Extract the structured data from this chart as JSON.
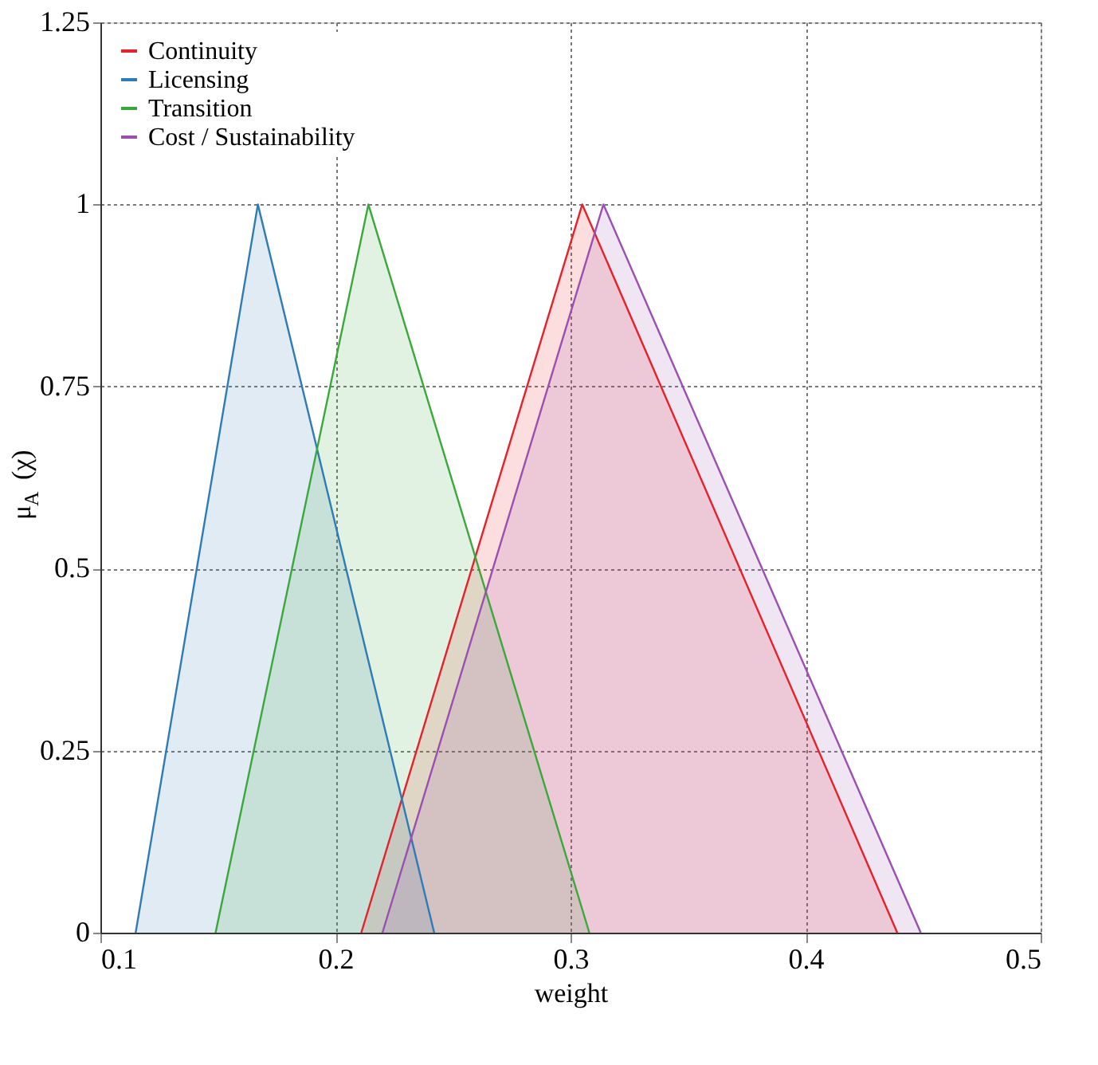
{
  "chart_data": {
    "type": "area",
    "xlabel": "weight",
    "ylabel": "μ$_{A}$ (χ)",
    "xlim": [
      0.1,
      0.5
    ],
    "xticks": [
      0.1,
      0.2,
      0.3,
      0.4,
      0.5
    ],
    "ylim": [
      0,
      1.25
    ],
    "yticks": [
      0,
      0.25,
      0.5,
      0.75,
      1,
      1.25
    ],
    "grid": true,
    "legend": "top left",
    "series": [
      {
        "name": "Continuity",
        "color": "#e8202a",
        "x": [
          0.211,
          0.305,
          0.439
        ],
        "values": [
          0,
          1,
          0
        ]
      },
      {
        "name": "Licensing",
        "color": "#2f7bb5",
        "x": [
          0.115,
          0.167,
          0.242
        ],
        "values": [
          0,
          1,
          0
        ]
      },
      {
        "name": "Transition",
        "color": "#3aa83a",
        "x": [
          0.149,
          0.214,
          0.308
        ],
        "values": [
          0,
          1,
          0
        ]
      },
      {
        "name": "Cost / Sustainability",
        "color": "#9b4fb0",
        "x": [
          0.22,
          0.314,
          0.449
        ],
        "values": [
          0,
          1,
          0
        ]
      }
    ]
  }
}
